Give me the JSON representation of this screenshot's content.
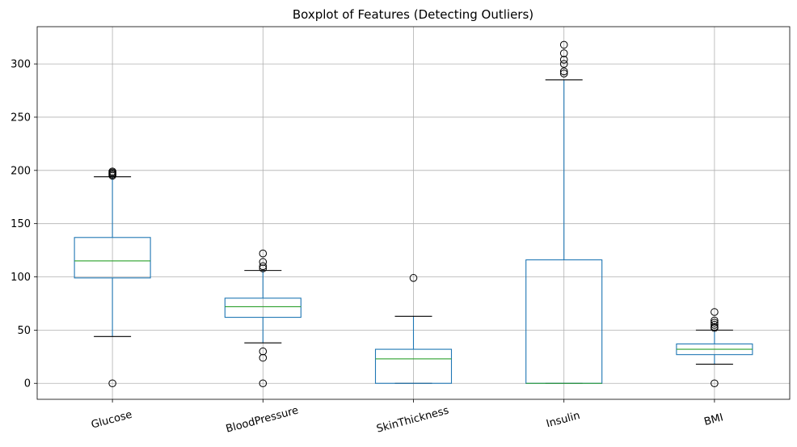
{
  "chart_data": {
    "type": "boxplot",
    "title": "Boxplot of Features (Detecting Outliers)",
    "xlabel": "",
    "ylabel": "",
    "ylim": [
      -15,
      335
    ],
    "yticks": [
      0,
      50,
      100,
      150,
      200,
      250,
      300
    ],
    "grid": true,
    "categories": [
      "Glucose",
      "BloodPressure",
      "SkinThickness",
      "Insulin",
      "BMI"
    ],
    "boxes": [
      {
        "label": "Glucose",
        "whislo": 44,
        "q1": 99,
        "med": 115,
        "q3": 137,
        "whishi": 194,
        "fliers": [
          0,
          195,
          196,
          197,
          198,
          199
        ]
      },
      {
        "label": "BloodPressure",
        "whislo": 38,
        "q1": 62,
        "med": 72,
        "q3": 80,
        "whishi": 106,
        "fliers": [
          0,
          24,
          30,
          108,
          110,
          114,
          122
        ]
      },
      {
        "label": "SkinThickness",
        "whislo": 0,
        "q1": 0,
        "med": 23,
        "q3": 32,
        "whishi": 63,
        "fliers": [
          99
        ]
      },
      {
        "label": "Insulin",
        "whislo": 0,
        "q1": 0,
        "med": 0,
        "q3": 116,
        "whishi": 285,
        "fliers": [
          291,
          293,
          300,
          304,
          310,
          318
        ]
      },
      {
        "label": "BMI",
        "whislo": 18,
        "q1": 27,
        "med": 32,
        "q3": 37,
        "whishi": 50,
        "fliers": [
          0,
          52,
          53,
          55,
          57,
          59,
          67
        ]
      }
    ]
  }
}
